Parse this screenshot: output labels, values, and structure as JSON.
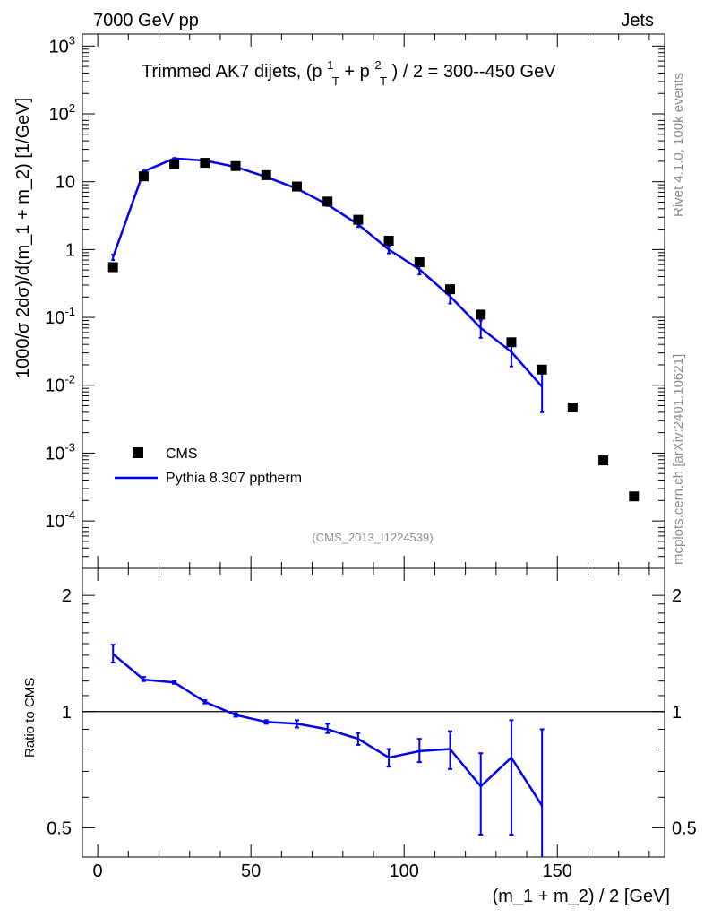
{
  "header": {
    "left": "7000 GeV pp",
    "right": "Jets"
  },
  "side_labels": {
    "rivet": "Rivet 4.1.0,  100k events",
    "mcplots": "mcplots.cern.ch [arXiv:2401.10621]"
  },
  "chart_data": [
    {
      "type": "scatter",
      "panel": "main",
      "title": {
        "prefix": "Trimmed AK7 dijets, (p",
        "sup1": "1",
        "sub1": "T",
        "mid": " + p",
        "sup2": "2",
        "sub2": "T",
        "suffix": ") / 2 = 300--450 GeV"
      },
      "ylabel": "1000/σ  2dσ)/d(m_1 + m_2) [1/GeV]",
      "yscale": "log",
      "ylim": [
        2e-05,
        1500
      ],
      "xlim": [
        -5,
        185
      ],
      "yticks": [
        {
          "value": 0.0001,
          "base": "10",
          "exp": "-4"
        },
        {
          "value": 0.001,
          "base": "10",
          "exp": "-3"
        },
        {
          "value": 0.01,
          "base": "10",
          "exp": "-2"
        },
        {
          "value": 0.1,
          "base": "10",
          "exp": "-1"
        },
        {
          "value": 1,
          "base": "1",
          "exp": ""
        },
        {
          "value": 10,
          "base": "10",
          "exp": ""
        },
        {
          "value": 100,
          "base": "10",
          "exp": "2"
        },
        {
          "value": 1000,
          "base": "10",
          "exp": "3"
        }
      ],
      "legend": {
        "placement": "lower-left",
        "entries": [
          "CMS",
          "Pythia 8.307 pptherm"
        ]
      },
      "analysis_id": "(CMS_2013_I1224539)",
      "series": [
        {
          "name": "CMS",
          "style": "markers",
          "color": "#000000",
          "x": [
            5,
            15,
            25,
            35,
            45,
            55,
            65,
            75,
            85,
            95,
            105,
            115,
            125,
            135,
            145,
            155,
            165,
            175
          ],
          "y": [
            0.55,
            12,
            18,
            19,
            17,
            12.5,
            8.5,
            5.1,
            2.75,
            1.35,
            0.65,
            0.26,
            0.11,
            0.043,
            0.017,
            0.0047,
            0.00078,
            0.00023
          ]
        },
        {
          "name": "Pythia 8.307 pptherm",
          "style": "line",
          "color": "#0000ee",
          "x": [
            5,
            15,
            25,
            35,
            45,
            55,
            65,
            75,
            85,
            95,
            105,
            115,
            125,
            135,
            145
          ],
          "y": [
            0.77,
            14.2,
            22,
            20.5,
            16.5,
            11.8,
            7.9,
            4.6,
            2.35,
            1.0,
            0.51,
            0.205,
            0.07,
            0.031,
            0.0095
          ],
          "err_lo": [
            0.7,
            13.8,
            21.6,
            20.2,
            16.2,
            11.6,
            7.7,
            4.4,
            2.15,
            0.88,
            0.43,
            0.16,
            0.05,
            0.019,
            0.004
          ],
          "err_hi": [
            0.84,
            14.6,
            22.4,
            20.8,
            16.8,
            12.0,
            8.1,
            4.8,
            2.55,
            1.12,
            0.59,
            0.25,
            0.09,
            0.043,
            0.016
          ]
        }
      ]
    },
    {
      "type": "line",
      "panel": "ratio",
      "ylabel": "Ratio to CMS",
      "xlabel": "(m_1 + m_2) / 2 [GeV]",
      "yscale": "log",
      "ylim": [
        0.42,
        2.35
      ],
      "xlim": [
        -5,
        185
      ],
      "reference": 1,
      "yticks": [
        {
          "value": 0.5,
          "label": "0.5"
        },
        {
          "value": 1,
          "label": "1"
        },
        {
          "value": 2,
          "label": "2"
        }
      ],
      "xticks": [
        {
          "value": 0,
          "label": "0"
        },
        {
          "value": 50,
          "label": "50"
        },
        {
          "value": 100,
          "label": "100"
        },
        {
          "value": 150,
          "label": "150"
        }
      ],
      "series": [
        {
          "name": "Pythia 8.307 pptherm / CMS",
          "color": "#0000ee",
          "x": [
            5,
            15,
            25,
            35,
            45,
            55,
            65,
            75,
            85,
            95,
            105,
            115,
            125,
            135,
            145
          ],
          "y": [
            1.41,
            1.21,
            1.19,
            1.06,
            0.98,
            0.94,
            0.93,
            0.9,
            0.85,
            0.76,
            0.79,
            0.8,
            0.64,
            0.76,
            0.57
          ],
          "err_lo": [
            1.34,
            1.2,
            1.18,
            1.05,
            0.97,
            0.93,
            0.91,
            0.88,
            0.82,
            0.72,
            0.74,
            0.71,
            0.48,
            0.48,
            0.3
          ],
          "err_hi": [
            1.49,
            1.23,
            1.2,
            1.07,
            0.99,
            0.95,
            0.95,
            0.93,
            0.88,
            0.8,
            0.85,
            0.89,
            0.78,
            0.95,
            0.9
          ]
        }
      ]
    }
  ]
}
